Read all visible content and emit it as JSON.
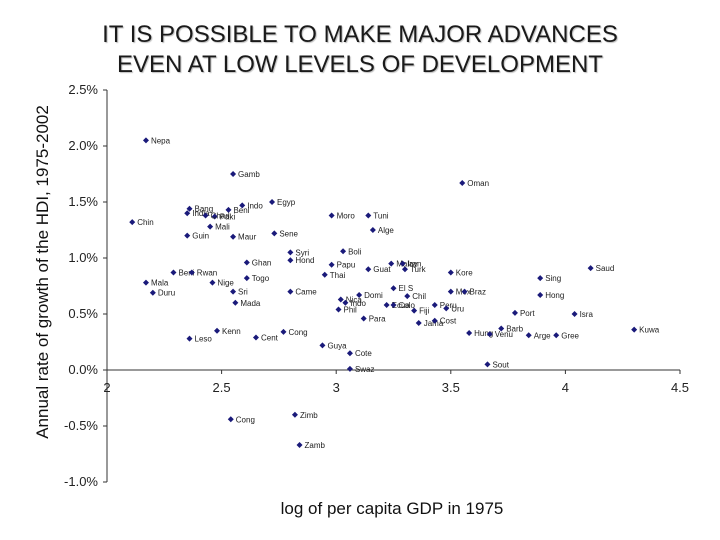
{
  "chart_data": {
    "type": "scatter",
    "title": "IT IS POSSIBLE TO MAKE MAJOR ADVANCES EVEN AT LOW LEVELS OF DEVELOPMENT",
    "xlabel": "log of per capita GDP in 1975",
    "ylabel": "Annual rate of growth of the HDI, 1975-2002",
    "xlim": [
      2,
      4.5
    ],
    "ylim": [
      -1.0,
      2.5
    ],
    "x_ticks": [
      "2",
      "2.5",
      "3",
      "3.5",
      "4",
      "4.5"
    ],
    "y_ticks": [
      "2.5%",
      "2.0%",
      "1.5%",
      "1.0%",
      "0.5%",
      "0.0%",
      "-0.5%",
      "-1.0%"
    ],
    "y_tick_values": [
      2.5,
      2.0,
      1.5,
      1.0,
      0.5,
      0.0,
      -0.5,
      -1.0
    ],
    "x_tick_values": [
      2,
      2.5,
      3,
      3.5,
      4,
      4.5
    ],
    "marker_color": "#1a1a7a",
    "points": [
      {
        "label": "Nepa",
        "x": 2.17,
        "y": 2.05
      },
      {
        "label": "Gamb",
        "x": 2.55,
        "y": 1.75
      },
      {
        "label": "Oman",
        "x": 3.55,
        "y": 1.67
      },
      {
        "label": "Egyp",
        "x": 2.72,
        "y": 1.5
      },
      {
        "label": "Indo",
        "x": 2.59,
        "y": 1.47
      },
      {
        "label": "Bang",
        "x": 2.36,
        "y": 1.44
      },
      {
        "label": "Beni",
        "x": 2.53,
        "y": 1.43
      },
      {
        "label": "Paki",
        "x": 2.47,
        "y": 1.37
      },
      {
        "label": "Mali",
        "x": 2.45,
        "y": 1.28
      },
      {
        "label": "Chin",
        "x": 2.11,
        "y": 1.32
      },
      {
        "label": "India",
        "x": 2.35,
        "y": 1.4
      },
      {
        "label": "Chad",
        "x": 2.43,
        "y": 1.38
      },
      {
        "label": "Moro",
        "x": 2.98,
        "y": 1.38
      },
      {
        "label": "Tuni",
        "x": 3.14,
        "y": 1.38
      },
      {
        "label": "Alge",
        "x": 3.16,
        "y": 1.25
      },
      {
        "label": "Guin",
        "x": 2.35,
        "y": 1.2
      },
      {
        "label": "Maur",
        "x": 2.55,
        "y": 1.19
      },
      {
        "label": "Sene",
        "x": 2.73,
        "y": 1.22
      },
      {
        "label": "Syri",
        "x": 2.8,
        "y": 1.05
      },
      {
        "label": "Boli",
        "x": 3.03,
        "y": 1.06
      },
      {
        "label": "Hond",
        "x": 2.8,
        "y": 0.98
      },
      {
        "label": "Ghan",
        "x": 2.61,
        "y": 0.96
      },
      {
        "label": "Papu",
        "x": 2.98,
        "y": 0.94
      },
      {
        "label": "Thai",
        "x": 2.95,
        "y": 0.85
      },
      {
        "label": "Malay",
        "x": 3.24,
        "y": 0.95
      },
      {
        "label": "Iran",
        "x": 3.29,
        "y": 0.95
      },
      {
        "label": "Guat",
        "x": 3.14,
        "y": 0.9
      },
      {
        "label": "Turk",
        "x": 3.3,
        "y": 0.9
      },
      {
        "label": "Kore",
        "x": 3.5,
        "y": 0.87
      },
      {
        "label": "Saud",
        "x": 4.11,
        "y": 0.91
      },
      {
        "label": "Sing",
        "x": 3.89,
        "y": 0.82
      },
      {
        "label": "Beni",
        "x": 2.29,
        "y": 0.87
      },
      {
        "label": "Rwan",
        "x": 2.37,
        "y": 0.87
      },
      {
        "label": "Togo",
        "x": 2.61,
        "y": 0.82
      },
      {
        "label": "Mala",
        "x": 2.17,
        "y": 0.78
      },
      {
        "label": "Nige",
        "x": 2.46,
        "y": 0.78
      },
      {
        "label": "El S",
        "x": 3.25,
        "y": 0.73
      },
      {
        "label": "Mex",
        "x": 3.5,
        "y": 0.7
      },
      {
        "label": "Braz",
        "x": 3.56,
        "y": 0.7
      },
      {
        "label": "Duru",
        "x": 2.2,
        "y": 0.69
      },
      {
        "label": "Sri",
        "x": 2.55,
        "y": 0.7
      },
      {
        "label": "Came",
        "x": 2.8,
        "y": 0.7
      },
      {
        "label": "Domi",
        "x": 3.1,
        "y": 0.67
      },
      {
        "label": "Chil",
        "x": 3.31,
        "y": 0.66
      },
      {
        "label": "Hong",
        "x": 3.89,
        "y": 0.67
      },
      {
        "label": "Mada",
        "x": 2.56,
        "y": 0.6
      },
      {
        "label": "Nica",
        "x": 3.02,
        "y": 0.63
      },
      {
        "label": "Indo",
        "x": 3.04,
        "y": 0.6
      },
      {
        "label": "Ecua",
        "x": 3.22,
        "y": 0.58
      },
      {
        "label": "Colo",
        "x": 3.25,
        "y": 0.58
      },
      {
        "label": "Peru",
        "x": 3.43,
        "y": 0.58
      },
      {
        "label": "Phil",
        "x": 3.01,
        "y": 0.54
      },
      {
        "label": "Fiji",
        "x": 3.34,
        "y": 0.53
      },
      {
        "label": "Uru",
        "x": 3.48,
        "y": 0.55
      },
      {
        "label": "Port",
        "x": 3.78,
        "y": 0.51
      },
      {
        "label": "Isra",
        "x": 4.04,
        "y": 0.5
      },
      {
        "label": "Para",
        "x": 3.12,
        "y": 0.46
      },
      {
        "label": "Jama",
        "x": 3.36,
        "y": 0.42
      },
      {
        "label": "Cost",
        "x": 3.43,
        "y": 0.44
      },
      {
        "label": "Barb",
        "x": 3.72,
        "y": 0.37
      },
      {
        "label": "Kenn",
        "x": 2.48,
        "y": 0.35
      },
      {
        "label": "Cong",
        "x": 2.77,
        "y": 0.34
      },
      {
        "label": "Hung",
        "x": 3.58,
        "y": 0.33
      },
      {
        "label": "Venu",
        "x": 3.67,
        "y": 0.32
      },
      {
        "label": "Arge",
        "x": 3.84,
        "y": 0.31
      },
      {
        "label": "Gree",
        "x": 3.96,
        "y": 0.31
      },
      {
        "label": "Kuwa",
        "x": 4.3,
        "y": 0.36
      },
      {
        "label": "Leso",
        "x": 2.36,
        "y": 0.28
      },
      {
        "label": "Cent",
        "x": 2.65,
        "y": 0.29
      },
      {
        "label": "Guya",
        "x": 2.94,
        "y": 0.22
      },
      {
        "label": "Cote",
        "x": 3.06,
        "y": 0.15
      },
      {
        "label": "Sout",
        "x": 3.66,
        "y": 0.05
      },
      {
        "label": "Swaz",
        "x": 3.06,
        "y": 0.01
      },
      {
        "label": "Cong",
        "x": 2.54,
        "y": -0.44
      },
      {
        "label": "Zimb",
        "x": 2.82,
        "y": -0.4
      },
      {
        "label": "Zamb",
        "x": 2.84,
        "y": -0.67
      }
    ]
  }
}
